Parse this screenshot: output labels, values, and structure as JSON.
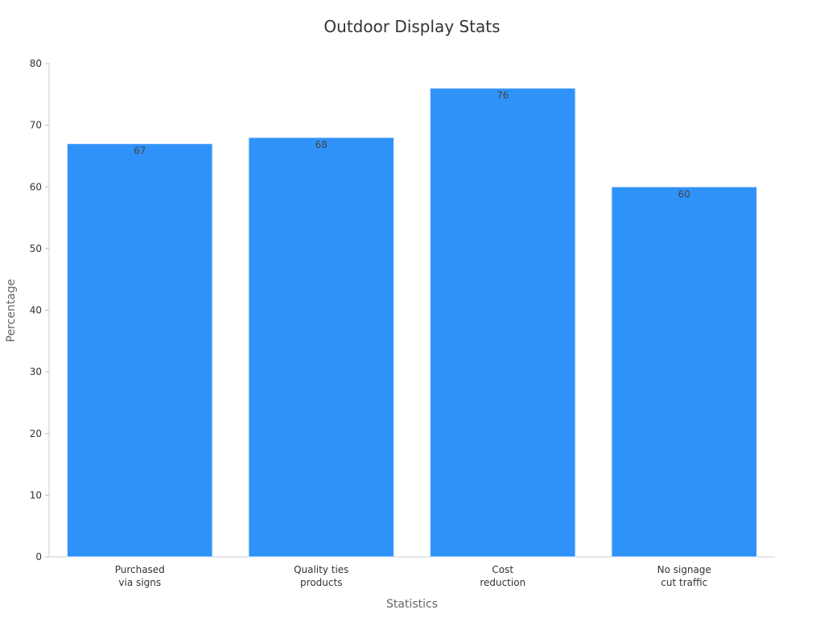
{
  "chart_data": {
    "type": "bar",
    "title": "Outdoor Display Stats",
    "xlabel": "Statistics",
    "ylabel": "Percentage",
    "categories": [
      [
        "Purchased",
        "via signs"
      ],
      [
        "Quality ties",
        "products"
      ],
      [
        "Cost",
        "reduction"
      ],
      [
        "No signage",
        "cut traffic"
      ]
    ],
    "values": [
      67,
      68,
      76,
      60
    ],
    "ylim": [
      0,
      80
    ],
    "yticks": [
      0,
      10,
      20,
      30,
      40,
      50,
      60,
      70,
      80
    ],
    "grid": false,
    "legend": "none",
    "bar_color": "#2f92f8",
    "bar_edge_color": "#d7e9ff"
  }
}
